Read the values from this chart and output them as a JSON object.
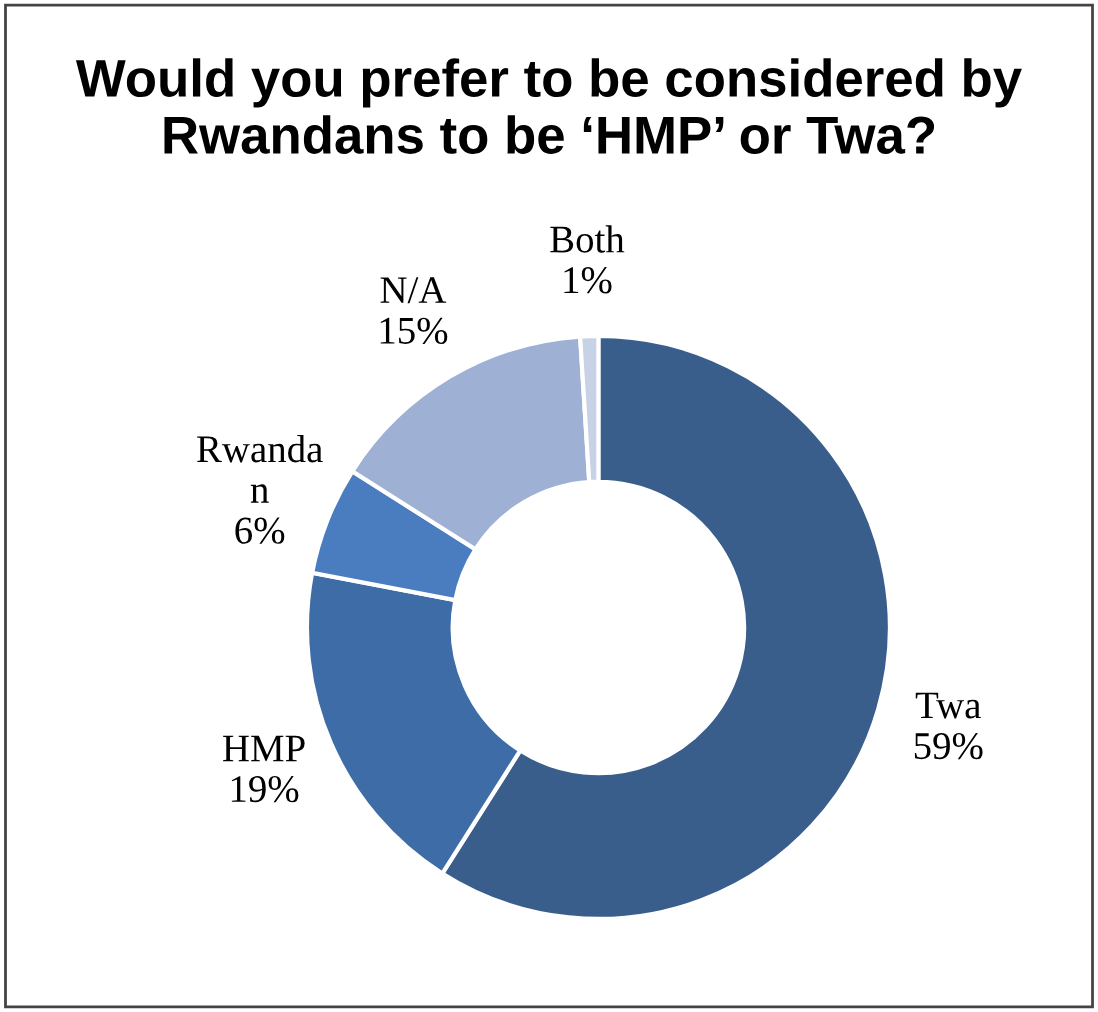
{
  "chart_data": {
    "type": "donut",
    "title": "Would you prefer to be considered by Rwandans to be ‘HMP’ or Twa?",
    "categories": [
      "Twa",
      "HMP",
      "Rwanda\nn",
      "N/A",
      "Both"
    ],
    "values": [
      59,
      19,
      6,
      15,
      1
    ],
    "value_labels": [
      "59%",
      "19%",
      "6%",
      "15%",
      "1%"
    ],
    "colors": [
      "#3a5e8c",
      "#3e6ca6",
      "#4a7cc0",
      "#9eb1d5",
      "#c8d2e6"
    ],
    "legend": false
  }
}
